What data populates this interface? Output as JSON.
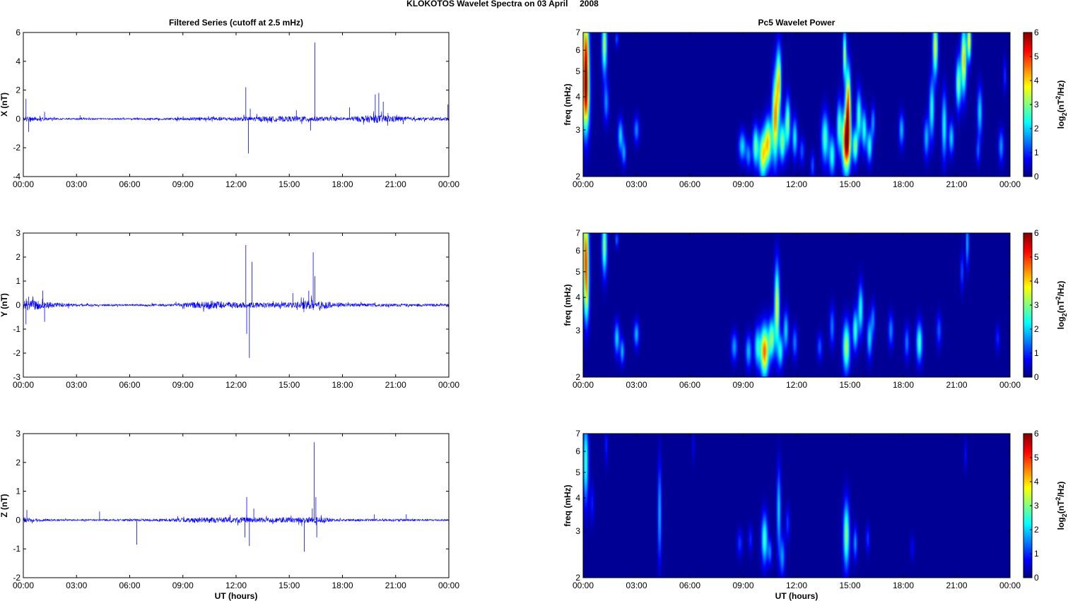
{
  "figure": {
    "title": "KLOKOTOS Wavelet Spectra on 03 April     2008",
    "left_title": "Filtered Series (cutoff at 2.5 mHz)",
    "right_title": "Pc5 Wavelet Power",
    "xlabel": "UT (hours)"
  },
  "chart_data": [
    {
      "type": "line",
      "component": "X",
      "ylabel": "X (nT)",
      "xlim": [
        0,
        24
      ],
      "ylim": [
        -4,
        6
      ],
      "yticks": [
        -4,
        -2,
        0,
        2,
        4,
        6
      ],
      "xticks": [
        "00:00",
        "03:00",
        "06:00",
        "09:00",
        "12:00",
        "15:00",
        "18:00",
        "21:00",
        "00:00"
      ],
      "color": "#0000ff",
      "grid": false,
      "noise": [
        [
          0,
          0.12
        ],
        [
          0.3,
          0.22
        ],
        [
          0.8,
          0.12
        ],
        [
          2,
          0.06
        ],
        [
          5,
          0.05
        ],
        [
          8,
          0.07
        ],
        [
          10,
          0.12
        ],
        [
          12,
          0.14
        ],
        [
          14,
          0.18
        ],
        [
          16,
          0.2
        ],
        [
          18,
          0.1
        ],
        [
          19.7,
          0.28
        ],
        [
          21,
          0.22
        ],
        [
          22,
          0.1
        ],
        [
          24,
          0.12
        ]
      ],
      "spikes": [
        [
          0.15,
          1.4
        ],
        [
          0.3,
          -0.9
        ],
        [
          1.2,
          0.5
        ],
        [
          3.2,
          0.25
        ],
        [
          12.55,
          2.2
        ],
        [
          12.7,
          -2.4
        ],
        [
          12.8,
          0.7
        ],
        [
          15.4,
          0.6
        ],
        [
          16.2,
          -0.8
        ],
        [
          16.45,
          5.3
        ],
        [
          18.4,
          0.8
        ],
        [
          19.85,
          1.7
        ],
        [
          20.05,
          1.8
        ],
        [
          20.3,
          1.2
        ],
        [
          23.95,
          1.0
        ]
      ]
    },
    {
      "type": "line",
      "component": "Y",
      "ylabel": "Y (nT)",
      "xlim": [
        0,
        24
      ],
      "ylim": [
        -3,
        3
      ],
      "yticks": [
        -3,
        -2,
        -1,
        0,
        1,
        2,
        3
      ],
      "xticks": [
        "00:00",
        "03:00",
        "06:00",
        "09:00",
        "12:00",
        "15:00",
        "18:00",
        "21:00",
        "00:00"
      ],
      "color": "#0000ff",
      "grid": false,
      "noise": [
        [
          0,
          0.22
        ],
        [
          0.6,
          0.2
        ],
        [
          1.2,
          0.14
        ],
        [
          3,
          0.05
        ],
        [
          6,
          0.03
        ],
        [
          8.5,
          0.06
        ],
        [
          10.5,
          0.18
        ],
        [
          12,
          0.12
        ],
        [
          13.5,
          0.1
        ],
        [
          15.5,
          0.14
        ],
        [
          16.3,
          0.22
        ],
        [
          18,
          0.08
        ],
        [
          20.5,
          0.06
        ],
        [
          24,
          0.05
        ]
      ],
      "spikes": [
        [
          0.15,
          -0.8
        ],
        [
          0.3,
          0.35
        ],
        [
          1.1,
          0.6
        ],
        [
          1.2,
          -0.7
        ],
        [
          12.55,
          2.5
        ],
        [
          12.6,
          -1.2
        ],
        [
          12.75,
          -2.2
        ],
        [
          12.9,
          1.8
        ],
        [
          15.2,
          0.5
        ],
        [
          16.1,
          0.6
        ],
        [
          16.35,
          2.2
        ],
        [
          16.45,
          1.2
        ]
      ]
    },
    {
      "type": "line",
      "component": "Z",
      "ylabel": "Z (nT)",
      "xlim": [
        0,
        24
      ],
      "ylim": [
        -2,
        3
      ],
      "yticks": [
        -2,
        -1,
        0,
        1,
        2,
        3
      ],
      "xticks": [
        "00:00",
        "03:00",
        "06:00",
        "09:00",
        "12:00",
        "15:00",
        "18:00",
        "21:00",
        "00:00"
      ],
      "color": "#0000ff",
      "grid": false,
      "noise": [
        [
          0,
          0.1
        ],
        [
          0.5,
          0.06
        ],
        [
          2,
          0.03
        ],
        [
          5,
          0.03
        ],
        [
          8,
          0.05
        ],
        [
          10,
          0.1
        ],
        [
          12,
          0.1
        ],
        [
          13.5,
          0.08
        ],
        [
          15.5,
          0.1
        ],
        [
          16.5,
          0.1
        ],
        [
          18,
          0.04
        ],
        [
          21,
          0.04
        ],
        [
          24,
          0.03
        ]
      ],
      "spikes": [
        [
          0.2,
          0.35
        ],
        [
          4.3,
          0.3
        ],
        [
          6.4,
          -0.85
        ],
        [
          12.5,
          -0.6
        ],
        [
          12.6,
          0.8
        ],
        [
          12.75,
          -0.9
        ],
        [
          13.0,
          0.4
        ],
        [
          15.85,
          -1.1
        ],
        [
          16.3,
          0.4
        ],
        [
          16.4,
          2.7
        ],
        [
          16.5,
          0.8
        ],
        [
          16.55,
          -0.6
        ],
        [
          19.8,
          0.2
        ],
        [
          21.6,
          0.2
        ]
      ]
    },
    {
      "type": "heatmap",
      "component": "X",
      "ylabel": "freq (mHz)",
      "xlim": [
        0,
        24
      ],
      "ylim": [
        2,
        7
      ],
      "yscale": "log",
      "yticks": [
        2,
        3,
        4,
        5,
        6,
        7
      ],
      "xticks": [
        "00:00",
        "03:00",
        "06:00",
        "09:00",
        "12:00",
        "15:00",
        "18:00",
        "21:00",
        "00:00"
      ],
      "colormap": "jet",
      "clim": [
        0,
        6
      ],
      "colorbar_label": "log2(nT²/Hz)",
      "colorbar_ticks": [
        0,
        1,
        2,
        3,
        4,
        5,
        6
      ],
      "blobs": [
        [
          0.15,
          5.4,
          0.13,
          0.32,
          5.2
        ],
        [
          0.15,
          3.8,
          0.15,
          0.2,
          2.5
        ],
        [
          1.2,
          6.3,
          0.1,
          0.18,
          3.2
        ],
        [
          1.3,
          3.8,
          0.1,
          0.12,
          1.5
        ],
        [
          1.9,
          6.6,
          0.05,
          0.05,
          1.3
        ],
        [
          2.1,
          2.85,
          0.1,
          0.1,
          2.0
        ],
        [
          2.3,
          2.45,
          0.08,
          0.08,
          1.6
        ],
        [
          3.0,
          3.0,
          0.1,
          0.08,
          1.5
        ],
        [
          8.95,
          2.6,
          0.14,
          0.09,
          2.0
        ],
        [
          9.3,
          2.4,
          0.1,
          0.08,
          1.5
        ],
        [
          9.7,
          2.6,
          0.12,
          0.12,
          2.8
        ],
        [
          10.1,
          2.4,
          0.14,
          0.14,
          3.6
        ],
        [
          10.4,
          2.7,
          0.14,
          0.14,
          3.8
        ],
        [
          10.8,
          3.3,
          0.12,
          0.25,
          4.3
        ],
        [
          11.0,
          4.6,
          0.1,
          0.2,
          3.6
        ],
        [
          11.2,
          2.7,
          0.12,
          0.12,
          3.0
        ],
        [
          11.5,
          3.2,
          0.1,
          0.15,
          3.0
        ],
        [
          11.9,
          2.8,
          0.1,
          0.12,
          2.2
        ],
        [
          12.3,
          2.5,
          0.1,
          0.08,
          1.2
        ],
        [
          12.9,
          2.2,
          0.08,
          0.08,
          1.2
        ],
        [
          13.6,
          2.8,
          0.14,
          0.15,
          2.6
        ],
        [
          14.0,
          2.4,
          0.12,
          0.12,
          2.4
        ],
        [
          14.4,
          3.1,
          0.1,
          0.15,
          2.6
        ],
        [
          14.8,
          2.7,
          0.16,
          0.18,
          5.8
        ],
        [
          14.9,
          3.8,
          0.1,
          0.22,
          4.3
        ],
        [
          14.7,
          5.8,
          0.07,
          0.15,
          3.2
        ],
        [
          15.3,
          2.6,
          0.1,
          0.1,
          3.0
        ],
        [
          15.5,
          3.4,
          0.1,
          0.15,
          2.6
        ],
        [
          15.8,
          3.0,
          0.1,
          0.12,
          2.4
        ],
        [
          16.1,
          2.6,
          0.1,
          0.1,
          2.4
        ],
        [
          16.3,
          3.2,
          0.08,
          0.1,
          1.6
        ],
        [
          17.9,
          3.0,
          0.1,
          0.1,
          1.8
        ],
        [
          19.3,
          2.8,
          0.1,
          0.12,
          1.8
        ],
        [
          19.6,
          3.6,
          0.1,
          0.18,
          2.4
        ],
        [
          19.8,
          6.2,
          0.1,
          0.18,
          3.6
        ],
        [
          20.3,
          3.1,
          0.1,
          0.2,
          2.3
        ],
        [
          20.7,
          2.8,
          0.1,
          0.1,
          2.0
        ],
        [
          21.1,
          4.5,
          0.1,
          0.15,
          3.0
        ],
        [
          21.4,
          5.5,
          0.1,
          0.2,
          4.0
        ],
        [
          21.7,
          6.5,
          0.08,
          0.12,
          3.8
        ],
        [
          22.3,
          3.5,
          0.1,
          0.15,
          2.0
        ],
        [
          22.2,
          2.5,
          0.08,
          0.08,
          1.2
        ],
        [
          23.5,
          2.6,
          0.1,
          0.1,
          1.6
        ],
        [
          23.7,
          4.8,
          0.06,
          0.1,
          1.0
        ]
      ]
    },
    {
      "type": "heatmap",
      "component": "Y",
      "ylabel": "freq (mHz)",
      "xlim": [
        0,
        24
      ],
      "ylim": [
        2,
        7
      ],
      "yscale": "log",
      "yticks": [
        2,
        3,
        4,
        5,
        6,
        7
      ],
      "xticks": [
        "00:00",
        "03:00",
        "06:00",
        "09:00",
        "12:00",
        "15:00",
        "18:00",
        "21:00",
        "00:00"
      ],
      "colormap": "jet",
      "clim": [
        0,
        6
      ],
      "colorbar_label": "log2(nT²/Hz)",
      "colorbar_ticks": [
        0,
        1,
        2,
        3,
        4,
        5,
        6
      ],
      "blobs": [
        [
          0.15,
          5.8,
          0.12,
          0.28,
          4.6
        ],
        [
          0.2,
          4.0,
          0.1,
          0.18,
          2.0
        ],
        [
          1.2,
          6.3,
          0.1,
          0.18,
          3.0
        ],
        [
          1.9,
          6.6,
          0.05,
          0.05,
          1.5
        ],
        [
          1.9,
          2.8,
          0.1,
          0.1,
          2.0
        ],
        [
          2.2,
          2.5,
          0.08,
          0.08,
          1.8
        ],
        [
          3.0,
          2.9,
          0.1,
          0.08,
          1.8
        ],
        [
          8.5,
          2.6,
          0.12,
          0.09,
          1.6
        ],
        [
          9.3,
          2.5,
          0.12,
          0.1,
          1.8
        ],
        [
          9.8,
          2.6,
          0.12,
          0.12,
          2.2
        ],
        [
          10.2,
          2.5,
          0.16,
          0.15,
          4.6
        ],
        [
          10.6,
          2.8,
          0.12,
          0.12,
          3.0
        ],
        [
          10.9,
          3.7,
          0.1,
          0.25,
          3.6
        ],
        [
          11.1,
          2.5,
          0.1,
          0.1,
          2.2
        ],
        [
          11.4,
          3.0,
          0.1,
          0.12,
          2.0
        ],
        [
          11.9,
          2.7,
          0.1,
          0.1,
          1.4
        ],
        [
          13.3,
          2.6,
          0.1,
          0.08,
          1.2
        ],
        [
          14.0,
          3.1,
          0.1,
          0.12,
          1.4
        ],
        [
          14.8,
          2.6,
          0.14,
          0.15,
          3.2
        ],
        [
          15.3,
          3.0,
          0.1,
          0.12,
          2.6
        ],
        [
          15.6,
          3.6,
          0.1,
          0.15,
          2.4
        ],
        [
          16.1,
          2.8,
          0.1,
          0.12,
          2.0
        ],
        [
          16.3,
          3.3,
          0.08,
          0.1,
          1.4
        ],
        [
          17.3,
          3.0,
          0.1,
          0.1,
          1.5
        ],
        [
          18.2,
          2.7,
          0.1,
          0.1,
          1.4
        ],
        [
          18.9,
          2.7,
          0.12,
          0.12,
          2.6
        ],
        [
          20.0,
          3.0,
          0.1,
          0.1,
          1.2
        ],
        [
          21.3,
          5.0,
          0.06,
          0.12,
          1.2
        ],
        [
          21.6,
          6.4,
          0.06,
          0.15,
          1.8
        ],
        [
          23.3,
          2.8,
          0.08,
          0.08,
          0.9
        ]
      ]
    },
    {
      "type": "heatmap",
      "component": "Z",
      "ylabel": "freq (mHz)",
      "xlim": [
        0,
        24
      ],
      "ylim": [
        2,
        7
      ],
      "yscale": "log",
      "yticks": [
        2,
        3,
        4,
        5,
        6,
        7
      ],
      "xticks": [
        "00:00",
        "03:00",
        "06:00",
        "09:00",
        "12:00",
        "15:00",
        "18:00",
        "21:00",
        "00:00"
      ],
      "colormap": "jet",
      "clim": [
        0,
        6
      ],
      "colorbar_label": "log2(nT²/Hz)",
      "colorbar_ticks": [
        0,
        1,
        2,
        3,
        4,
        5,
        6
      ],
      "blobs": [
        [
          0.15,
          5.5,
          0.1,
          0.25,
          2.6
        ],
        [
          0.5,
          3.8,
          0.08,
          0.12,
          0.8
        ],
        [
          1.3,
          6.3,
          0.06,
          0.12,
          0.8
        ],
        [
          4.3,
          3.5,
          0.07,
          0.3,
          1.8
        ],
        [
          6.2,
          6.3,
          0.05,
          0.1,
          0.6
        ],
        [
          8.8,
          2.7,
          0.1,
          0.08,
          1.0
        ],
        [
          9.4,
          2.8,
          0.08,
          0.08,
          0.9
        ],
        [
          10.2,
          2.8,
          0.12,
          0.15,
          2.6
        ],
        [
          10.5,
          2.5,
          0.08,
          0.08,
          1.4
        ],
        [
          11.0,
          3.6,
          0.08,
          0.25,
          2.0
        ],
        [
          11.2,
          2.4,
          0.1,
          0.12,
          1.6
        ],
        [
          11.5,
          3.2,
          0.08,
          0.1,
          1.0
        ],
        [
          14.8,
          2.9,
          0.12,
          0.2,
          3.0
        ],
        [
          15.3,
          2.7,
          0.08,
          0.1,
          1.6
        ],
        [
          16.0,
          2.8,
          0.08,
          0.08,
          1.0
        ],
        [
          18.5,
          2.6,
          0.08,
          0.08,
          0.6
        ],
        [
          21.5,
          5.8,
          0.05,
          0.1,
          0.7
        ]
      ]
    }
  ]
}
